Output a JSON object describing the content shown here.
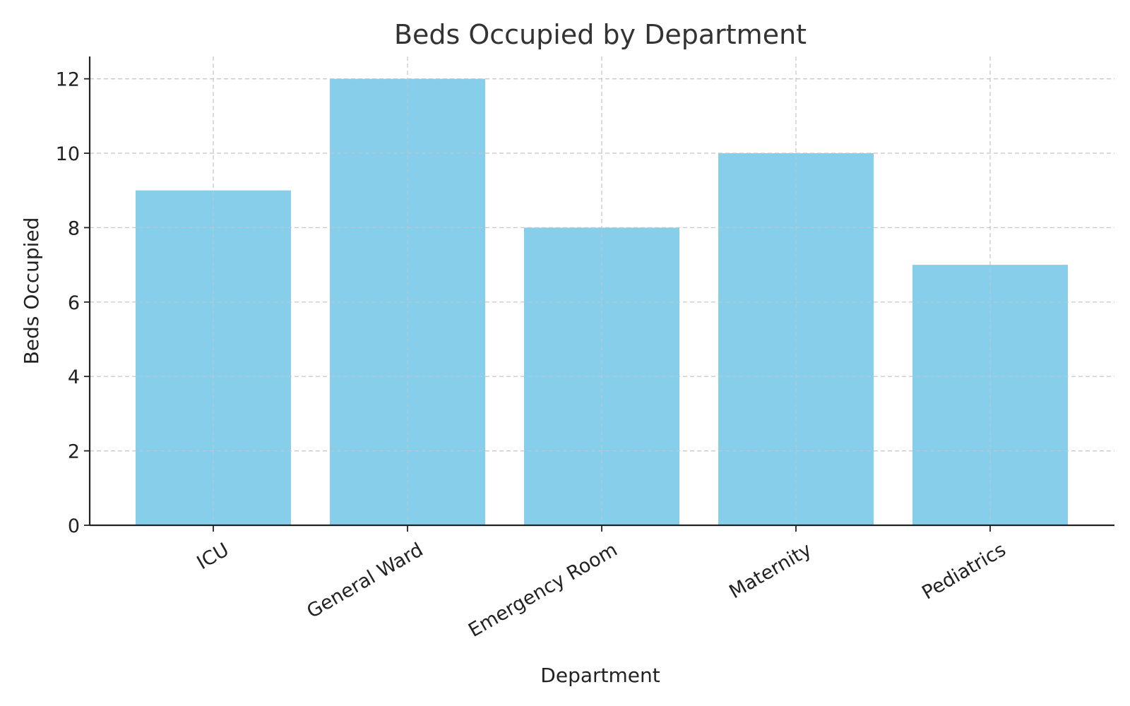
{
  "chart_data": {
    "type": "bar",
    "title": "Beds Occupied by Department",
    "xlabel": "Department",
    "ylabel": "Beds Occupied",
    "categories": [
      "ICU",
      "General Ward",
      "Emergency Room",
      "Maternity",
      "Pediatrics"
    ],
    "values": [
      9,
      12,
      8,
      10,
      7
    ],
    "ylim": [
      0,
      12.6
    ],
    "yticks": [
      0,
      2,
      4,
      6,
      8,
      10,
      12
    ],
    "grid": true,
    "bar_color": "#87CEEB",
    "x_tick_rotation_deg": 30
  }
}
